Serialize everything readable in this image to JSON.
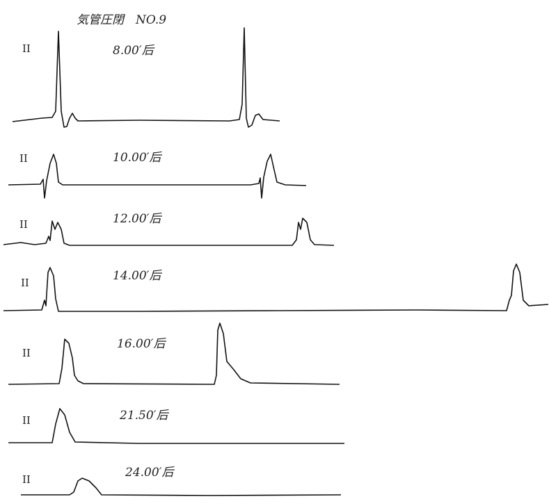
{
  "header": {
    "title": "気管圧閉　NO.9"
  },
  "rows": [
    {
      "lead": "II",
      "time": "8.00′后"
    },
    {
      "lead": "II",
      "time": "10.00′后"
    },
    {
      "lead": "II",
      "time": "12.00′后"
    },
    {
      "lead": "II",
      "time": "14.00′后"
    },
    {
      "lead": "II",
      "time": "16.00′后"
    },
    {
      "lead": "II",
      "time": "21.50′后"
    },
    {
      "lead": "II",
      "time": "24.00′后"
    }
  ]
}
